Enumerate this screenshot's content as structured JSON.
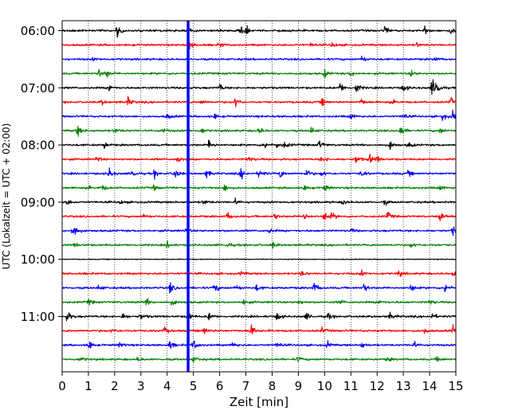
{
  "chart_data": {
    "type": "line",
    "xlabel": "Zeit  [min]",
    "ylabel": "UTC (Lokalzeit = UTC + 02:00)",
    "xlim": [
      0,
      15
    ],
    "x_ticks": [
      "0",
      "1",
      "2",
      "3",
      "4",
      "5",
      "6",
      "7",
      "8",
      "9",
      "10",
      "11",
      "12",
      "13",
      "14",
      "15"
    ],
    "y_ticks": [
      "06:00",
      "07:00",
      "08:00",
      "09:00",
      "10:00",
      "11:00"
    ],
    "grid": "vertical dotted",
    "trace_colors": [
      "#000000",
      "#ff0000",
      "#0000ff",
      "#008000"
    ],
    "trace_count": 24,
    "trace_start": "06:00",
    "trace_interval_min": 15,
    "marker": {
      "x": 4.8,
      "color": "#0000ff"
    },
    "traces": [
      {
        "t": "06:00",
        "events": [
          [
            2.1,
            1.0
          ],
          [
            4.8,
            0.6
          ],
          [
            6.8,
            0.7
          ],
          [
            7.0,
            0.8
          ],
          [
            12.3,
            0.8
          ],
          [
            13.8,
            0.7
          ],
          [
            14.8,
            0.6
          ]
        ]
      },
      {
        "t": "06:15",
        "events": [
          [
            4.8,
            1.0
          ],
          [
            6.0,
            0.4
          ],
          [
            9.5,
            0.4
          ],
          [
            10.3,
            0.5
          ],
          [
            13.5,
            0.4
          ]
        ]
      },
      {
        "t": "06:30",
        "events": [
          [
            1.2,
            0.3
          ],
          [
            11.4,
            0.7
          ],
          [
            14.2,
            0.4
          ]
        ]
      },
      {
        "t": "06:45",
        "events": [
          [
            1.4,
            0.9
          ],
          [
            1.7,
            0.6
          ],
          [
            10.0,
            0.7
          ],
          [
            11.0,
            0.5
          ],
          [
            13.3,
            0.5
          ]
        ]
      },
      {
        "t": "07:00",
        "events": [
          [
            1.8,
            0.7
          ],
          [
            6.0,
            0.7
          ],
          [
            10.6,
            0.9
          ],
          [
            11.2,
            1.0
          ],
          [
            13.0,
            0.8
          ],
          [
            14.1,
            1.6
          ],
          [
            14.3,
            1.2
          ]
        ]
      },
      {
        "t": "07:15",
        "events": [
          [
            1.5,
            0.5
          ],
          [
            2.5,
            0.8
          ],
          [
            5.3,
            0.4
          ],
          [
            6.6,
            1.0
          ],
          [
            9.9,
            0.7
          ],
          [
            11.4,
            0.6
          ],
          [
            12.5,
            0.6
          ],
          [
            14.8,
            0.7
          ]
        ]
      },
      {
        "t": "07:30",
        "events": [
          [
            4.0,
            0.5
          ],
          [
            5.8,
            0.5
          ],
          [
            11.0,
            0.6
          ],
          [
            13.0,
            0.6
          ],
          [
            14.5,
            0.7
          ],
          [
            14.9,
            1.0
          ]
        ]
      },
      {
        "t": "07:45",
        "events": [
          [
            0.6,
            1.0
          ],
          [
            2.0,
            0.5
          ],
          [
            3.8,
            0.6
          ],
          [
            5.3,
            0.6
          ],
          [
            7.5,
            0.6
          ],
          [
            9.5,
            0.7
          ],
          [
            12.9,
            1.0
          ],
          [
            14.4,
            0.5
          ]
        ]
      },
      {
        "t": "08:00",
        "events": [
          [
            1.6,
            0.7
          ],
          [
            5.6,
            0.9
          ],
          [
            7.7,
            0.7
          ],
          [
            8.2,
            0.6
          ],
          [
            8.5,
            0.6
          ],
          [
            9.8,
            0.8
          ],
          [
            12.5,
            0.8
          ],
          [
            13.2,
            0.5
          ]
        ]
      },
      {
        "t": "08:15",
        "events": [
          [
            1.3,
            0.5
          ],
          [
            4.4,
            0.6
          ],
          [
            7.1,
            0.6
          ],
          [
            9.9,
            0.6
          ],
          [
            11.2,
            0.8
          ],
          [
            11.7,
            1.0
          ],
          [
            12.0,
            0.6
          ]
        ]
      },
      {
        "t": "08:30",
        "events": [
          [
            1.8,
            0.9
          ],
          [
            2.7,
            0.8
          ],
          [
            3.5,
            0.7
          ],
          [
            4.3,
            0.9
          ],
          [
            5.5,
            0.8
          ],
          [
            6.8,
            1.0
          ],
          [
            7.5,
            0.9
          ],
          [
            8.3,
            0.8
          ],
          [
            9.3,
            0.9
          ],
          [
            9.9,
            0.6
          ],
          [
            11.4,
            0.7
          ],
          [
            13.2,
            0.5
          ]
        ]
      },
      {
        "t": "08:45",
        "events": [
          [
            0.9,
            0.5
          ],
          [
            1.5,
            0.6
          ],
          [
            3.5,
            0.5
          ],
          [
            6.2,
            0.7
          ],
          [
            9.2,
            0.5
          ],
          [
            10.0,
            0.6
          ],
          [
            14.4,
            0.5
          ]
        ]
      },
      {
        "t": "09:00",
        "events": [
          [
            0.2,
            0.5
          ],
          [
            2.2,
            0.4
          ],
          [
            5.4,
            0.5
          ],
          [
            6.6,
            0.5
          ],
          [
            10.7,
            0.5
          ],
          [
            12.3,
            0.4
          ]
        ]
      },
      {
        "t": "09:15",
        "events": [
          [
            3.1,
            0.5
          ],
          [
            6.3,
            0.7
          ],
          [
            8.1,
            0.6
          ],
          [
            9.2,
            0.8
          ],
          [
            10.0,
            1.0
          ],
          [
            10.3,
            0.6
          ],
          [
            12.4,
            0.8
          ],
          [
            14.4,
            0.7
          ]
        ]
      },
      {
        "t": "09:30",
        "events": [
          [
            0.4,
            0.9
          ],
          [
            0.5,
            0.6
          ],
          [
            4.7,
            0.5
          ],
          [
            7.9,
            0.4
          ],
          [
            11.0,
            0.4
          ],
          [
            14.9,
            0.8
          ]
        ]
      },
      {
        "t": "09:45",
        "events": [
          [
            0.5,
            0.4
          ],
          [
            4.0,
            0.6
          ],
          [
            6.3,
            0.5
          ],
          [
            8.0,
            0.6
          ],
          [
            13.3,
            0.5
          ]
        ]
      },
      {
        "t": "10:00",
        "events": []
      },
      {
        "t": "10:15",
        "events": [
          [
            6.8,
            0.4
          ],
          [
            9.1,
            0.5
          ],
          [
            11.4,
            0.5
          ],
          [
            12.8,
            0.7
          ],
          [
            14.9,
            0.6
          ]
        ]
      },
      {
        "t": "10:30",
        "events": [
          [
            1.4,
            0.6
          ],
          [
            4.1,
            1.0
          ],
          [
            5.8,
            0.9
          ],
          [
            6.6,
            0.7
          ],
          [
            7.4,
            0.6
          ],
          [
            9.6,
            1.0
          ],
          [
            11.5,
            0.8
          ],
          [
            13.3,
            0.7
          ],
          [
            14.6,
            1.0
          ]
        ]
      },
      {
        "t": "10:45",
        "events": [
          [
            1.0,
            0.5
          ],
          [
            3.2,
            0.7
          ],
          [
            4.2,
            0.6
          ],
          [
            6.9,
            0.6
          ],
          [
            9.0,
            0.5
          ],
          [
            10.6,
            0.4
          ],
          [
            12.1,
            0.4
          ],
          [
            14.0,
            0.5
          ]
        ]
      },
      {
        "t": "11:00",
        "events": [
          [
            0.2,
            1.0
          ],
          [
            2.3,
            0.6
          ],
          [
            3.0,
            0.5
          ],
          [
            4.8,
            0.8
          ],
          [
            5.6,
            0.7
          ],
          [
            8.2,
            0.8
          ],
          [
            9.3,
            0.6
          ],
          [
            10.1,
            0.6
          ],
          [
            12.5,
            0.6
          ],
          [
            14.1,
            0.6
          ]
        ]
      },
      {
        "t": "11:15",
        "events": [
          [
            1.9,
            0.4
          ],
          [
            3.9,
            0.6
          ],
          [
            5.4,
            0.7
          ],
          [
            7.2,
            1.0
          ],
          [
            9.9,
            0.5
          ],
          [
            13.8,
            0.5
          ],
          [
            14.9,
            1.0
          ]
        ]
      },
      {
        "t": "11:30",
        "events": [
          [
            1.0,
            1.0
          ],
          [
            2.2,
            0.6
          ],
          [
            4.1,
            0.8
          ],
          [
            5.0,
            1.0
          ],
          [
            6.5,
            0.6
          ],
          [
            8.2,
            0.6
          ],
          [
            10.1,
            0.6
          ],
          [
            11.4,
            0.7
          ],
          [
            13.4,
            0.6
          ]
        ]
      },
      {
        "t": "11:45",
        "events": [
          [
            0.7,
            0.5
          ],
          [
            2.9,
            0.4
          ],
          [
            5.0,
            0.5
          ],
          [
            9.0,
            0.5
          ],
          [
            12.4,
            0.4
          ],
          [
            14.3,
            0.5
          ]
        ]
      }
    ]
  }
}
